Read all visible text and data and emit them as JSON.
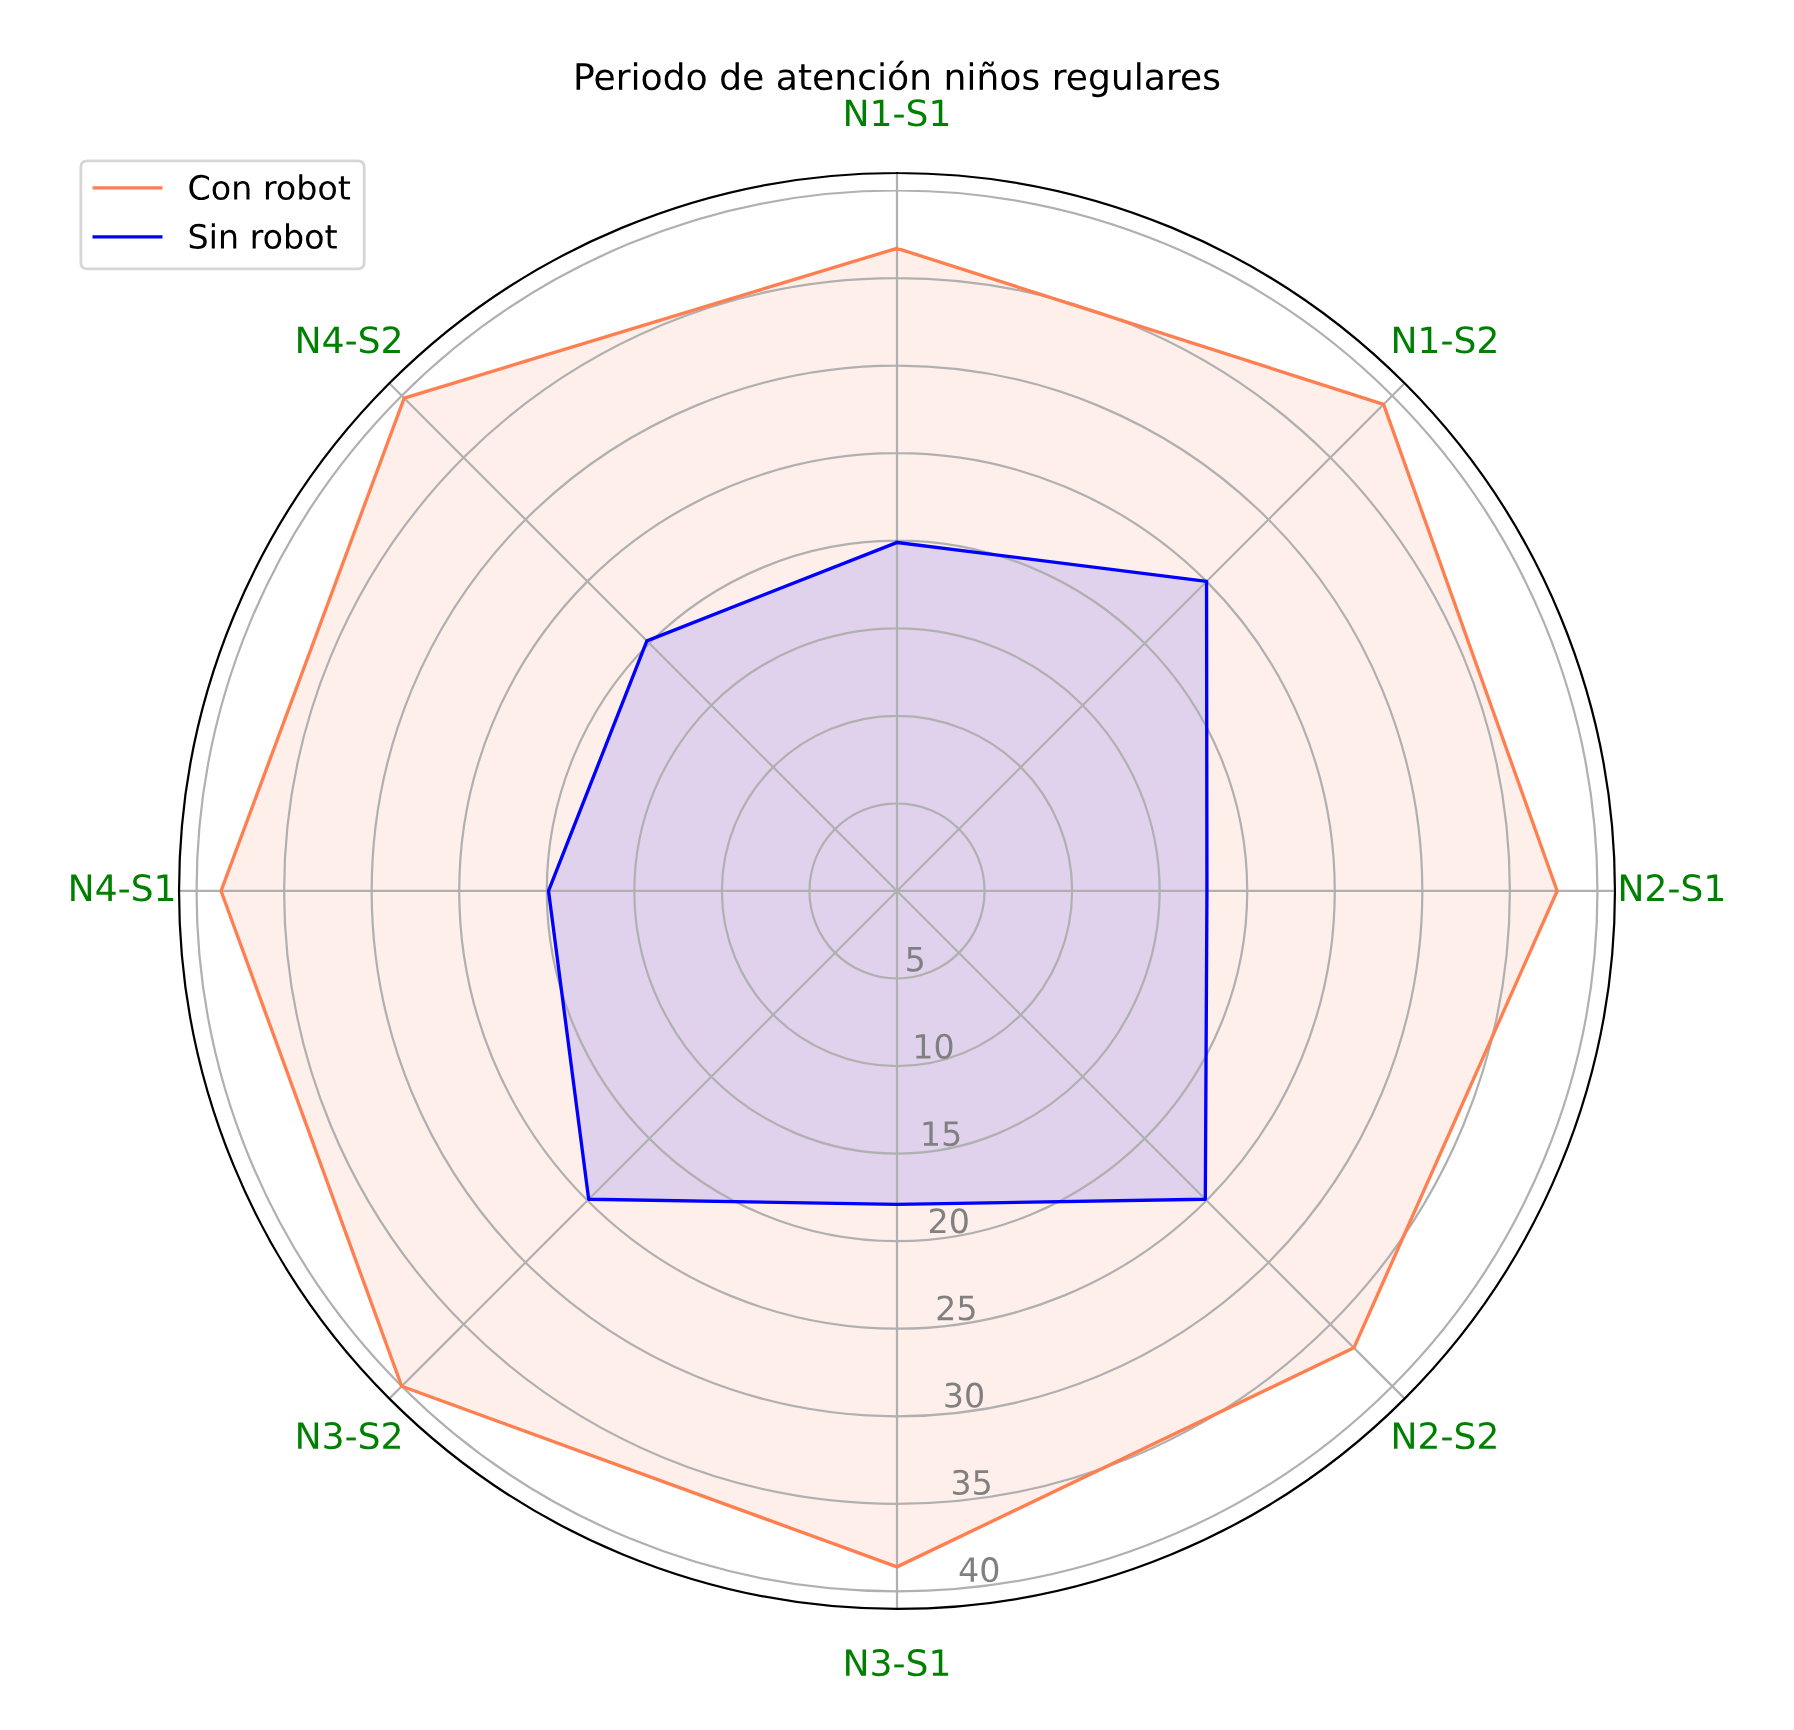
{
  "chart_data": {
    "type": "radar",
    "title": "Periodo de atención niños regulares",
    "categories": [
      "N1-S1",
      "N1-S2",
      "N2-S1",
      "N2-S2",
      "N3-S1",
      "N3-S2",
      "N4-S1",
      "N4-S2"
    ],
    "series": [
      {
        "name": "Con robot",
        "color": "#ff7f50",
        "values": [
          36.7,
          39.3,
          37.7,
          36.9,
          38.6,
          40.0,
          38.6,
          39.8
        ]
      },
      {
        "name": "Sin robot",
        "color": "#0000ff",
        "values": [
          19.9,
          25.0,
          17.7,
          24.9,
          17.9,
          24.9,
          19.9,
          20.2
        ]
      }
    ],
    "ylim": [
      0,
      41
    ],
    "yticks": [
      5,
      10,
      15,
      20,
      25,
      30,
      35,
      40
    ],
    "grid": true,
    "legend": "top left"
  }
}
